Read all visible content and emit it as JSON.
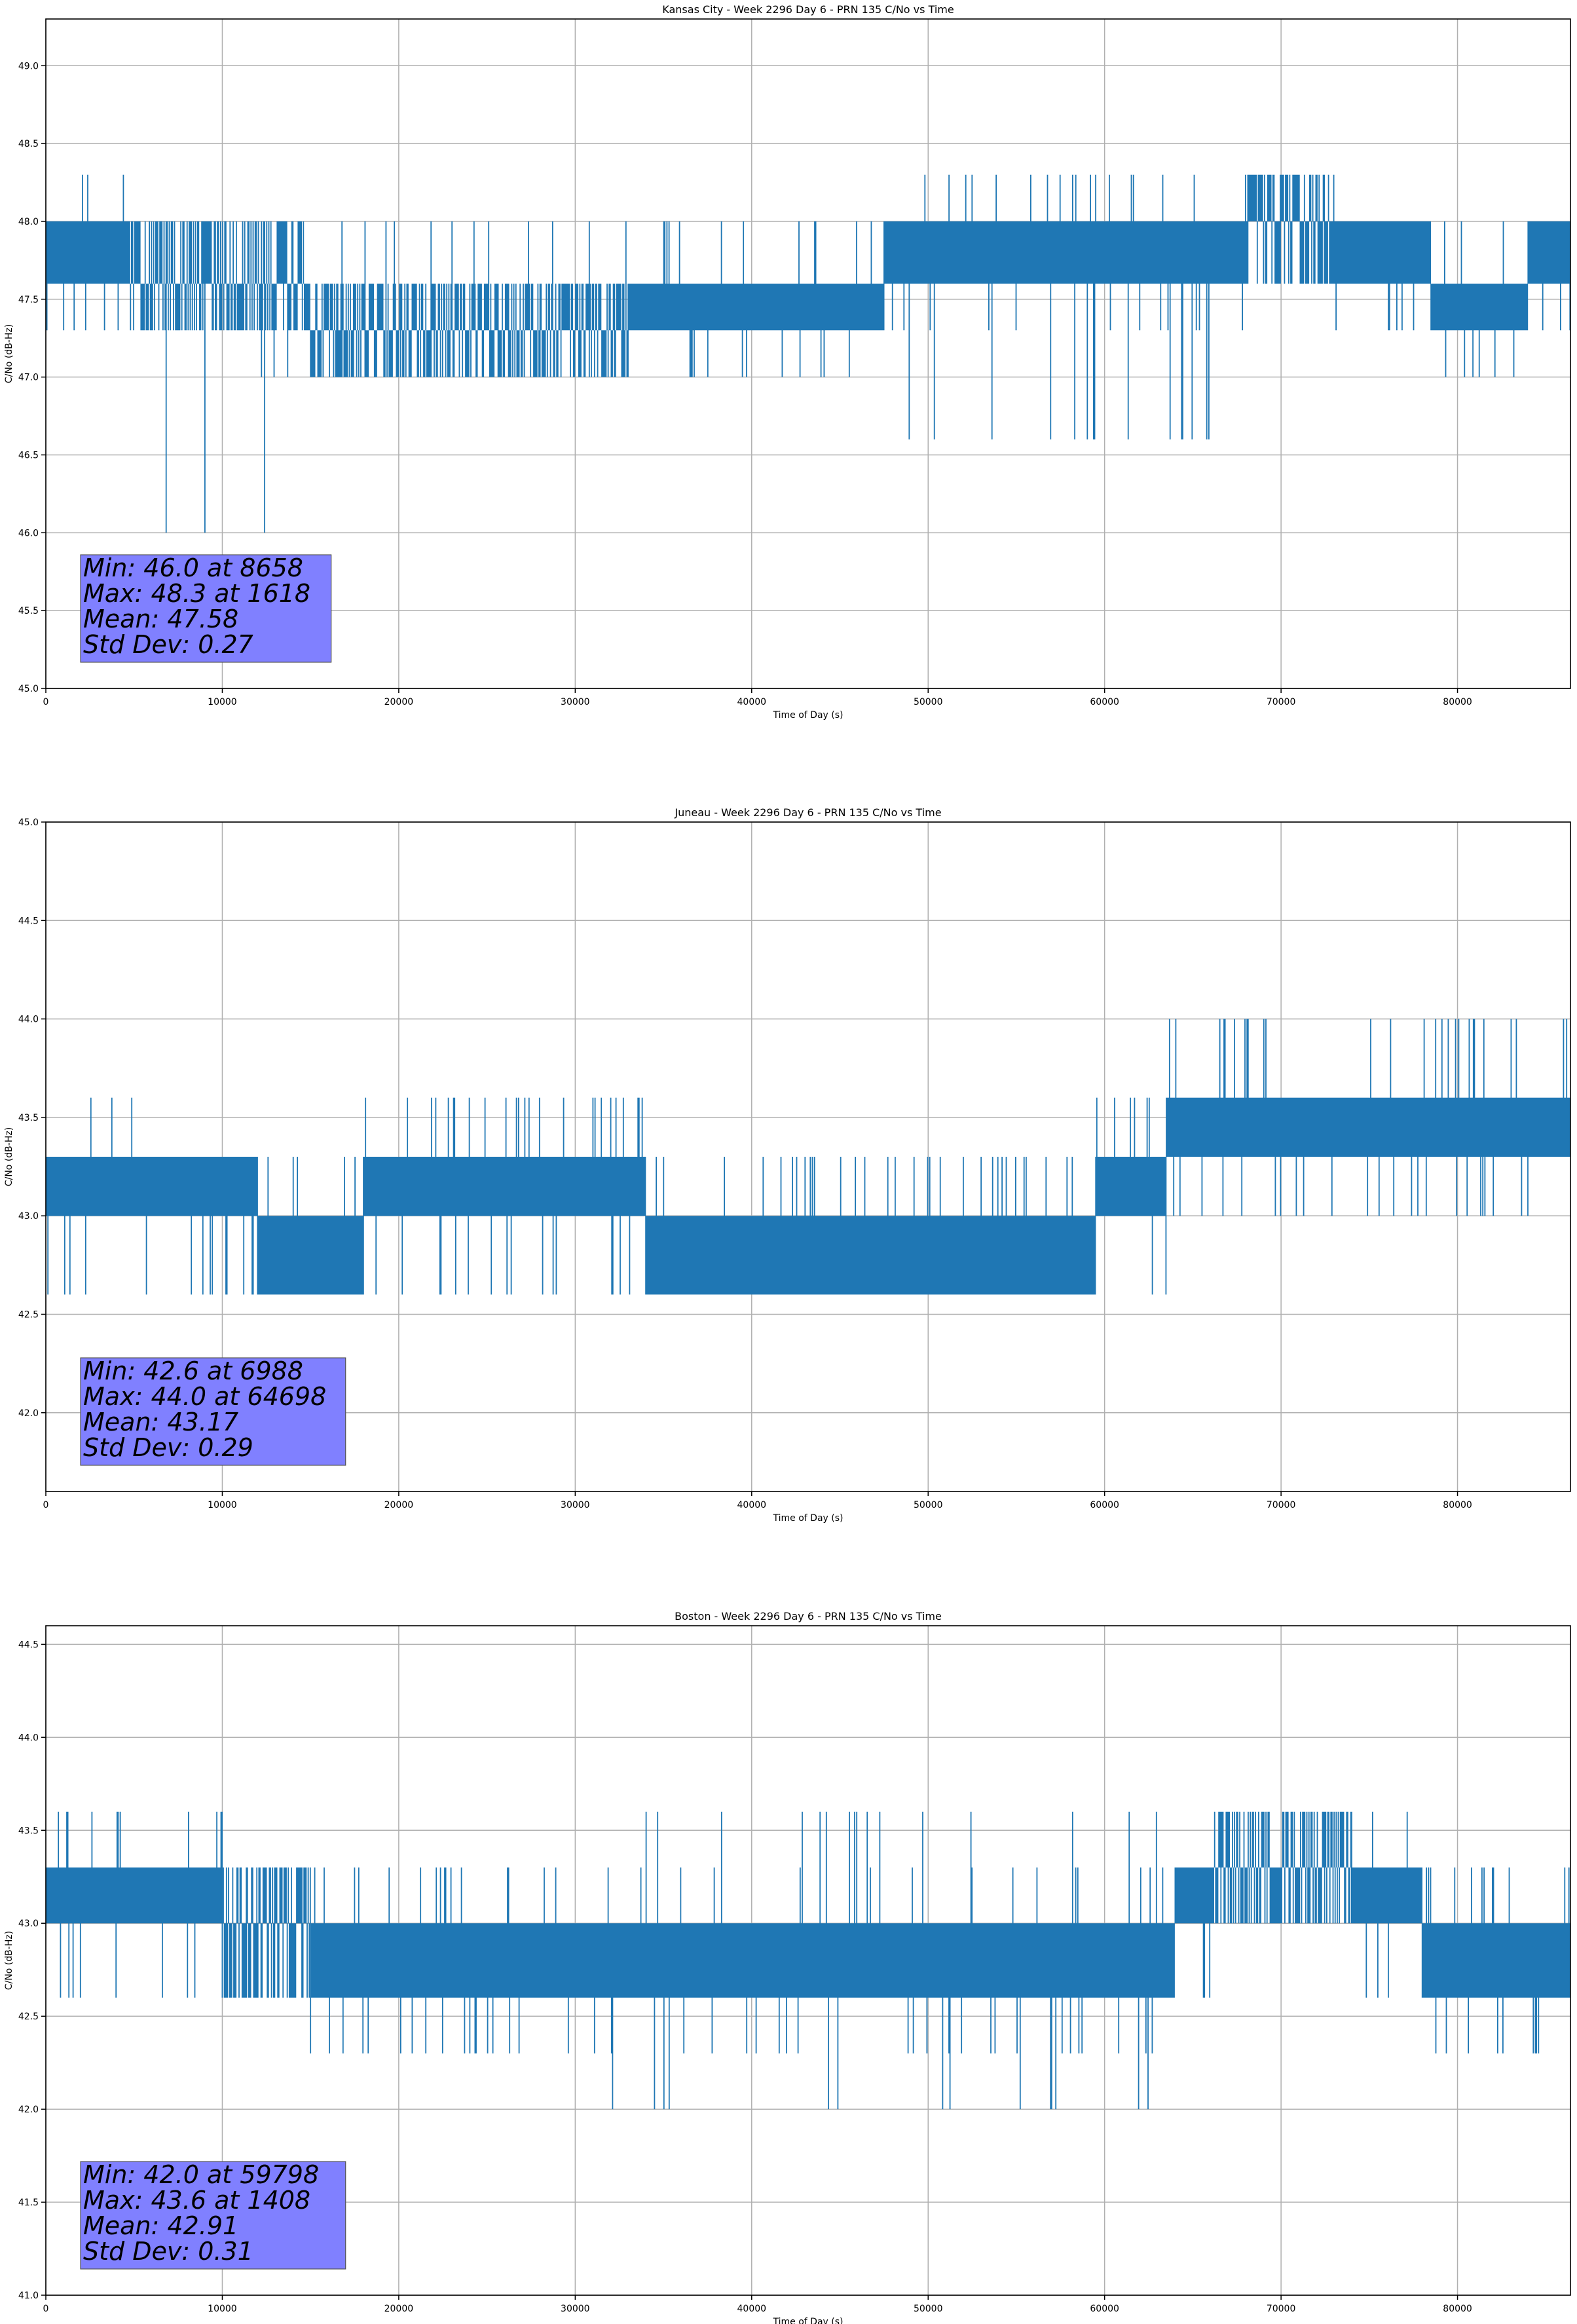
{
  "chart_data": [
    {
      "type": "line",
      "title": "Kansas City - Week 2296 Day 6 - PRN 135 C/No vs Time",
      "xlabel": "Time of Day (s)",
      "ylabel": "C/No (dB-Hz)",
      "xlim": [
        0,
        86400
      ],
      "ylim": [
        45.0,
        49.3
      ],
      "xticks": [
        0,
        10000,
        20000,
        30000,
        40000,
        50000,
        60000,
        70000,
        80000
      ],
      "yticks": [
        45.0,
        45.5,
        46.0,
        46.5,
        47.0,
        47.5,
        48.0,
        48.5,
        49.0
      ],
      "grid": true,
      "series_color": "#1f77b4",
      "stats_box_color": "#8080ff",
      "stats_lines": [
        "Min: 46.0 at 8658",
        "Max: 48.3 at 1618",
        "Mean: 47.58",
        "Std Dev: 0.27"
      ],
      "segments": [
        {
          "x0": 0,
          "x1": 4800,
          "bands": [
            [
              47.6,
              48.0
            ]
          ],
          "spikes_up": [
            48.3
          ],
          "spikes_down": [
            47.3
          ]
        },
        {
          "x0": 4800,
          "x1": 15000,
          "bands": [
            [
              47.3,
              47.6
            ],
            [
              47.6,
              48.0
            ]
          ],
          "spikes_up": [
            48.0
          ],
          "spikes_down": [
            47.0,
            46.0
          ]
        },
        {
          "x0": 15000,
          "x1": 33000,
          "bands": [
            [
              47.3,
              47.6
            ],
            [
              47.0,
              47.3
            ]
          ],
          "spikes_up": [
            47.6,
            48.0
          ],
          "spikes_down": [
            47.0
          ]
        },
        {
          "x0": 33000,
          "x1": 47500,
          "bands": [
            [
              47.3,
              47.6
            ]
          ],
          "spikes_up": [
            47.6,
            48.0
          ],
          "spikes_down": [
            47.0
          ]
        },
        {
          "x0": 47500,
          "x1": 68000,
          "bands": [
            [
              47.6,
              48.0
            ]
          ],
          "spikes_up": [
            48.3
          ],
          "spikes_down": [
            47.3,
            46.6
          ]
        },
        {
          "x0": 68000,
          "x1": 73000,
          "bands": [
            [
              47.6,
              48.0
            ],
            [
              48.0,
              48.3
            ]
          ],
          "spikes_up": [
            48.3
          ],
          "spikes_down": [
            47.6
          ]
        },
        {
          "x0": 73000,
          "x1": 78500,
          "bands": [
            [
              47.6,
              48.0
            ]
          ],
          "spikes_up": [
            48.0
          ],
          "spikes_down": [
            47.3
          ]
        },
        {
          "x0": 78500,
          "x1": 84000,
          "bands": [
            [
              47.3,
              47.6
            ]
          ],
          "spikes_up": [
            47.6,
            48.0
          ],
          "spikes_down": [
            47.0
          ]
        },
        {
          "x0": 84000,
          "x1": 86400,
          "bands": [
            [
              47.6,
              48.0
            ]
          ],
          "spikes_up": [
            48.0
          ],
          "spikes_down": [
            47.3
          ]
        }
      ]
    },
    {
      "type": "line",
      "title": "Juneau - Week 2296 Day 6 - PRN 135 C/No vs Time",
      "xlabel": "Time of Day (s)",
      "ylabel": "C/No (dB-Hz)",
      "xlim": [
        0,
        86400
      ],
      "ylim": [
        41.6,
        45.0
      ],
      "xticks": [
        0,
        10000,
        20000,
        30000,
        40000,
        50000,
        60000,
        70000,
        80000
      ],
      "yticks": [
        42.0,
        42.5,
        43.0,
        43.5,
        44.0,
        44.5,
        45.0
      ],
      "grid": true,
      "series_color": "#1f77b4",
      "stats_box_color": "#8080ff",
      "stats_lines": [
        "Min: 42.6 at 6988",
        "Max: 44.0 at 64698",
        "Mean: 43.17",
        "Std Dev: 0.29"
      ],
      "segments": [
        {
          "x0": 0,
          "x1": 7000,
          "bands": [
            [
              43.0,
              43.3
            ]
          ],
          "spikes_up": [
            43.6
          ],
          "spikes_down": [
            42.6
          ]
        },
        {
          "x0": 7000,
          "x1": 12000,
          "bands": [
            [
              43.0,
              43.3
            ]
          ],
          "spikes_up": [
            43.3
          ],
          "spikes_down": [
            42.6
          ]
        },
        {
          "x0": 12000,
          "x1": 18000,
          "bands": [
            [
              42.6,
              43.0
            ]
          ],
          "spikes_up": [
            43.3
          ],
          "spikes_down": [
            42.6
          ]
        },
        {
          "x0": 18000,
          "x1": 34000,
          "bands": [
            [
              43.0,
              43.3
            ]
          ],
          "spikes_up": [
            43.6
          ],
          "spikes_down": [
            42.6
          ]
        },
        {
          "x0": 34000,
          "x1": 59500,
          "bands": [
            [
              42.6,
              43.0
            ]
          ],
          "spikes_up": [
            43.3
          ],
          "spikes_down": [
            42.6
          ]
        },
        {
          "x0": 59500,
          "x1": 63500,
          "bands": [
            [
              43.0,
              43.3
            ]
          ],
          "spikes_up": [
            43.6
          ],
          "spikes_down": [
            42.6
          ]
        },
        {
          "x0": 63500,
          "x1": 86400,
          "bands": [
            [
              43.3,
              43.6
            ]
          ],
          "spikes_up": [
            44.0
          ],
          "spikes_down": [
            43.0
          ]
        }
      ]
    },
    {
      "type": "line",
      "title": "Boston - Week 2296 Day 6 - PRN 135 C/No vs Time",
      "xlabel": "Time of Day (s)",
      "ylabel": "C/No (dB-Hz)",
      "xlim": [
        0,
        86400
      ],
      "ylim": [
        41.0,
        44.6
      ],
      "xticks": [
        0,
        10000,
        20000,
        30000,
        40000,
        50000,
        60000,
        70000,
        80000
      ],
      "yticks": [
        41.0,
        41.5,
        42.0,
        42.5,
        43.0,
        43.5,
        44.0,
        44.5
      ],
      "grid": true,
      "series_color": "#1f77b4",
      "stats_box_color": "#8080ff",
      "stats_lines": [
        "Min: 42.0 at 59798",
        "Max: 43.6 at 1408",
        "Mean: 42.91",
        "Std Dev: 0.31"
      ],
      "segments": [
        {
          "x0": 0,
          "x1": 5000,
          "bands": [
            [
              43.0,
              43.3
            ]
          ],
          "spikes_up": [
            43.6
          ],
          "spikes_down": [
            42.6
          ]
        },
        {
          "x0": 5000,
          "x1": 10000,
          "bands": [
            [
              43.0,
              43.3
            ]
          ],
          "spikes_up": [
            43.6
          ],
          "spikes_down": [
            42.6
          ]
        },
        {
          "x0": 10000,
          "x1": 15000,
          "bands": [
            [
              42.6,
              43.0
            ],
            [
              43.0,
              43.3
            ]
          ],
          "spikes_up": [
            43.3
          ],
          "spikes_down": [
            42.6
          ]
        },
        {
          "x0": 15000,
          "x1": 32000,
          "bands": [
            [
              42.6,
              43.0
            ]
          ],
          "spikes_up": [
            43.3
          ],
          "spikes_down": [
            42.3
          ]
        },
        {
          "x0": 32000,
          "x1": 64000,
          "bands": [
            [
              42.6,
              43.0
            ]
          ],
          "spikes_up": [
            43.3,
            43.6
          ],
          "spikes_down": [
            42.3,
            42.0
          ]
        },
        {
          "x0": 64000,
          "x1": 66000,
          "bands": [
            [
              43.0,
              43.3
            ]
          ],
          "spikes_up": [
            43.3
          ],
          "spikes_down": [
            42.6
          ]
        },
        {
          "x0": 66000,
          "x1": 74000,
          "bands": [
            [
              43.0,
              43.3
            ],
            [
              43.3,
              43.6
            ]
          ],
          "spikes_up": [
            43.6
          ],
          "spikes_down": [
            43.0
          ]
        },
        {
          "x0": 74000,
          "x1": 78000,
          "bands": [
            [
              43.0,
              43.3
            ]
          ],
          "spikes_up": [
            43.6
          ],
          "spikes_down": [
            42.6
          ]
        },
        {
          "x0": 78000,
          "x1": 86400,
          "bands": [
            [
              42.6,
              43.0
            ]
          ],
          "spikes_up": [
            43.3
          ],
          "spikes_down": [
            42.3
          ]
        }
      ]
    }
  ]
}
